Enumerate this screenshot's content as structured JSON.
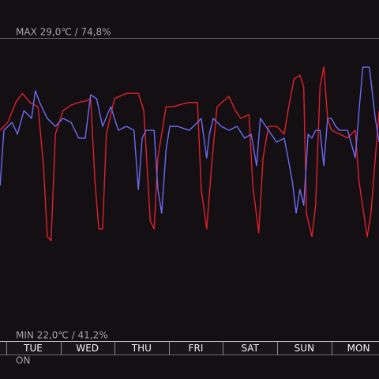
{
  "chart_data": {
    "type": "line",
    "max_label": "MAX 29,0℃ / 74,8%",
    "min_label": "MIN 22,0℃ / 41,2%",
    "status": "ON",
    "xlim": [
      -0.612,
      6.378
    ],
    "xticks": [
      {
        "value": 0,
        "label": "TUE"
      },
      {
        "value": 1,
        "label": "WED"
      },
      {
        "value": 2,
        "label": "THU"
      },
      {
        "value": 3,
        "label": "FRI"
      },
      {
        "value": 4,
        "label": "SAT"
      },
      {
        "value": 5,
        "label": "SUN"
      },
      {
        "value": 6,
        "label": "MON"
      }
    ],
    "ylim": [
      22,
      29
    ],
    "y2lim": [
      41.2,
      74.8
    ],
    "series": [
      {
        "color": "#e0212b",
        "x": [
          -0.61,
          -0.47,
          -0.32,
          -0.2,
          -0.06,
          0.09,
          0.19,
          0.26,
          0.33,
          0.41,
          0.55,
          0.7,
          0.84,
          0.96,
          1.06,
          1.14,
          1.21,
          1.28,
          1.35,
          1.5,
          1.72,
          1.94,
          2.04,
          2.16,
          2.23,
          2.3,
          2.45,
          2.59,
          2.74,
          2.88,
          3.03,
          3.1,
          3.2,
          3.29,
          3.39,
          3.61,
          3.73,
          3.83,
          3.98,
          4.05,
          4.16,
          4.24,
          4.34,
          4.49,
          4.63,
          4.7,
          4.81,
          4.92,
          4.99,
          5.04,
          5.14,
          5.21,
          5.29,
          5.36,
          5.43,
          5.5,
          5.65,
          5.8,
          5.94,
          6.01,
          6.16,
          6.23,
          6.31,
          6.38
        ],
        "values": [
          26.87,
          27.05,
          27.51,
          27.72,
          27.51,
          27.41,
          26.05,
          24.41,
          24.32,
          26.78,
          27.32,
          27.45,
          27.51,
          27.54,
          27.6,
          25.68,
          24.59,
          24.59,
          26.78,
          27.6,
          27.72,
          27.72,
          27.32,
          24.77,
          24.59,
          26.23,
          27.41,
          27.41,
          27.47,
          27.51,
          27.51,
          25.5,
          24.59,
          26.05,
          27.41,
          27.65,
          27.32,
          27.14,
          27.23,
          25.59,
          24.5,
          26.23,
          26.96,
          26.96,
          26.78,
          27.32,
          28.05,
          28.14,
          27.87,
          24.95,
          24.41,
          25.14,
          27.87,
          28.33,
          27.14,
          26.87,
          26.78,
          26.69,
          26.87,
          25.68,
          24.41,
          24.95,
          26.23,
          27.32
        ]
      },
      {
        "color": "#6c6cf2",
        "axis": "y2",
        "x": [
          -0.61,
          -0.54,
          -0.39,
          -0.29,
          -0.17,
          -0.03,
          0.04,
          0.12,
          0.26,
          0.41,
          0.55,
          0.7,
          0.84,
          0.96,
          1.06,
          1.17,
          1.28,
          1.43,
          1.57,
          1.72,
          1.86,
          1.94,
          2.01,
          2.08,
          2.23,
          2.3,
          2.37,
          2.45,
          2.52,
          2.66,
          2.88,
          3.03,
          3.1,
          3.2,
          3.25,
          3.32,
          3.47,
          3.61,
          3.76,
          3.9,
          4.02,
          4.12,
          4.19,
          4.34,
          4.49,
          4.63,
          4.7,
          4.78,
          4.85,
          4.92,
          4.99,
          5.07,
          5.14,
          5.21,
          5.29,
          5.36,
          5.43,
          5.5,
          5.58,
          5.65,
          5.8,
          5.94,
          6.01,
          6.08,
          6.2,
          6.31,
          6.38
        ],
        "values": [
          58.44,
          64.56,
          65.44,
          64.13,
          66.75,
          65.88,
          68.94,
          67.63,
          65.88,
          65.0,
          65.88,
          65.44,
          63.69,
          63.69,
          68.5,
          68.06,
          65.0,
          67.19,
          64.56,
          65.0,
          64.56,
          58.0,
          63.69,
          64.56,
          64.56,
          58.0,
          55.38,
          62.38,
          65.0,
          65.0,
          64.56,
          65.44,
          65.88,
          61.5,
          64.13,
          65.88,
          65.0,
          64.56,
          65.0,
          63.69,
          64.13,
          60.63,
          65.88,
          64.56,
          63.25,
          63.69,
          61.5,
          58.88,
          55.38,
          58.0,
          56.25,
          64.13,
          63.69,
          64.56,
          64.56,
          60.63,
          65.88,
          65.88,
          65.0,
          64.56,
          64.56,
          61.5,
          66.75,
          71.56,
          71.56,
          65.88,
          63.25
        ]
      }
    ]
  }
}
